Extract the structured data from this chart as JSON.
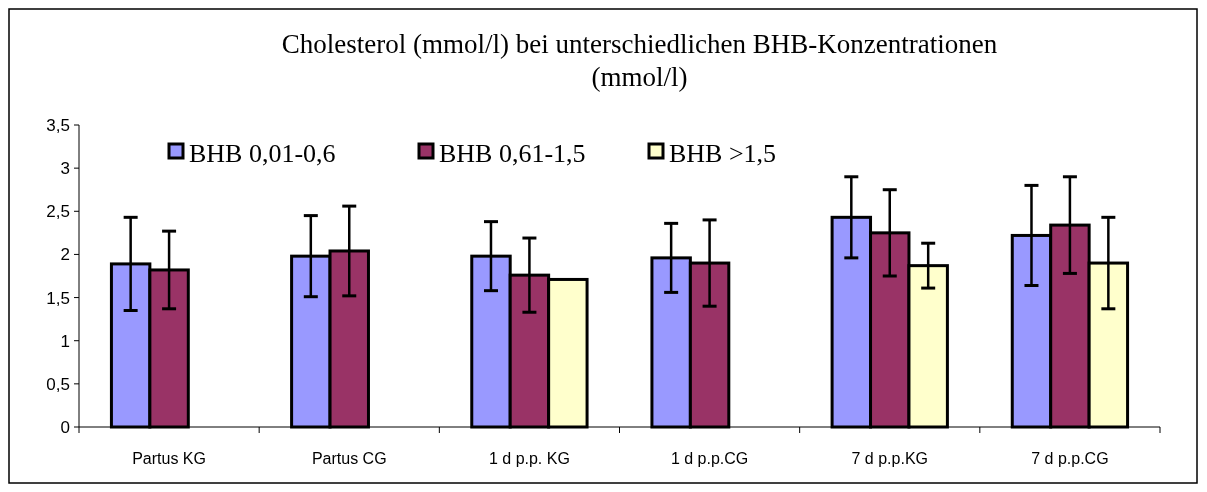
{
  "chart_data": {
    "type": "bar",
    "title": "Cholesterol (mmol/l) bei unterschiedlichen BHB-Konzentrationen (mmol/l)",
    "categories": [
      "Partus KG",
      "Partus CG",
      "1 d p.p. KG",
      "1 d p.p.CG",
      "7 d p.p.KG",
      "7 d p.p.CG"
    ],
    "series": [
      {
        "name": "BHB 0,01-0,6",
        "color": "#9999ff",
        "values": [
          1.89,
          1.98,
          1.98,
          1.96,
          2.43,
          2.22
        ],
        "errors": [
          0.54,
          0.47,
          0.4,
          0.4,
          0.47,
          0.58
        ]
      },
      {
        "name": "BHB 0,61-1,5",
        "color": "#993366",
        "values": [
          1.82,
          2.04,
          1.76,
          1.9,
          2.25,
          2.34
        ],
        "errors": [
          0.45,
          0.52,
          0.43,
          0.5,
          0.5,
          0.56
        ]
      },
      {
        "name": "BHB >1,5",
        "color": "#ffffcc",
        "values": [
          0,
          0,
          1.71,
          0,
          1.87,
          1.9
        ],
        "errors": [
          null,
          null,
          null,
          null,
          0.26,
          0.53
        ]
      }
    ],
    "ylim": [
      0,
      3.5
    ],
    "yticks": [
      0,
      {
        "value": 0.5,
        "label": "0,5"
      },
      1,
      {
        "value": 1.5,
        "label": "1,5"
      },
      2,
      {
        "value": 2.5,
        "label": "2,5"
      },
      3,
      {
        "value": 3.5,
        "label": "3,5"
      }
    ],
    "grid": false,
    "legend": "top left"
  }
}
